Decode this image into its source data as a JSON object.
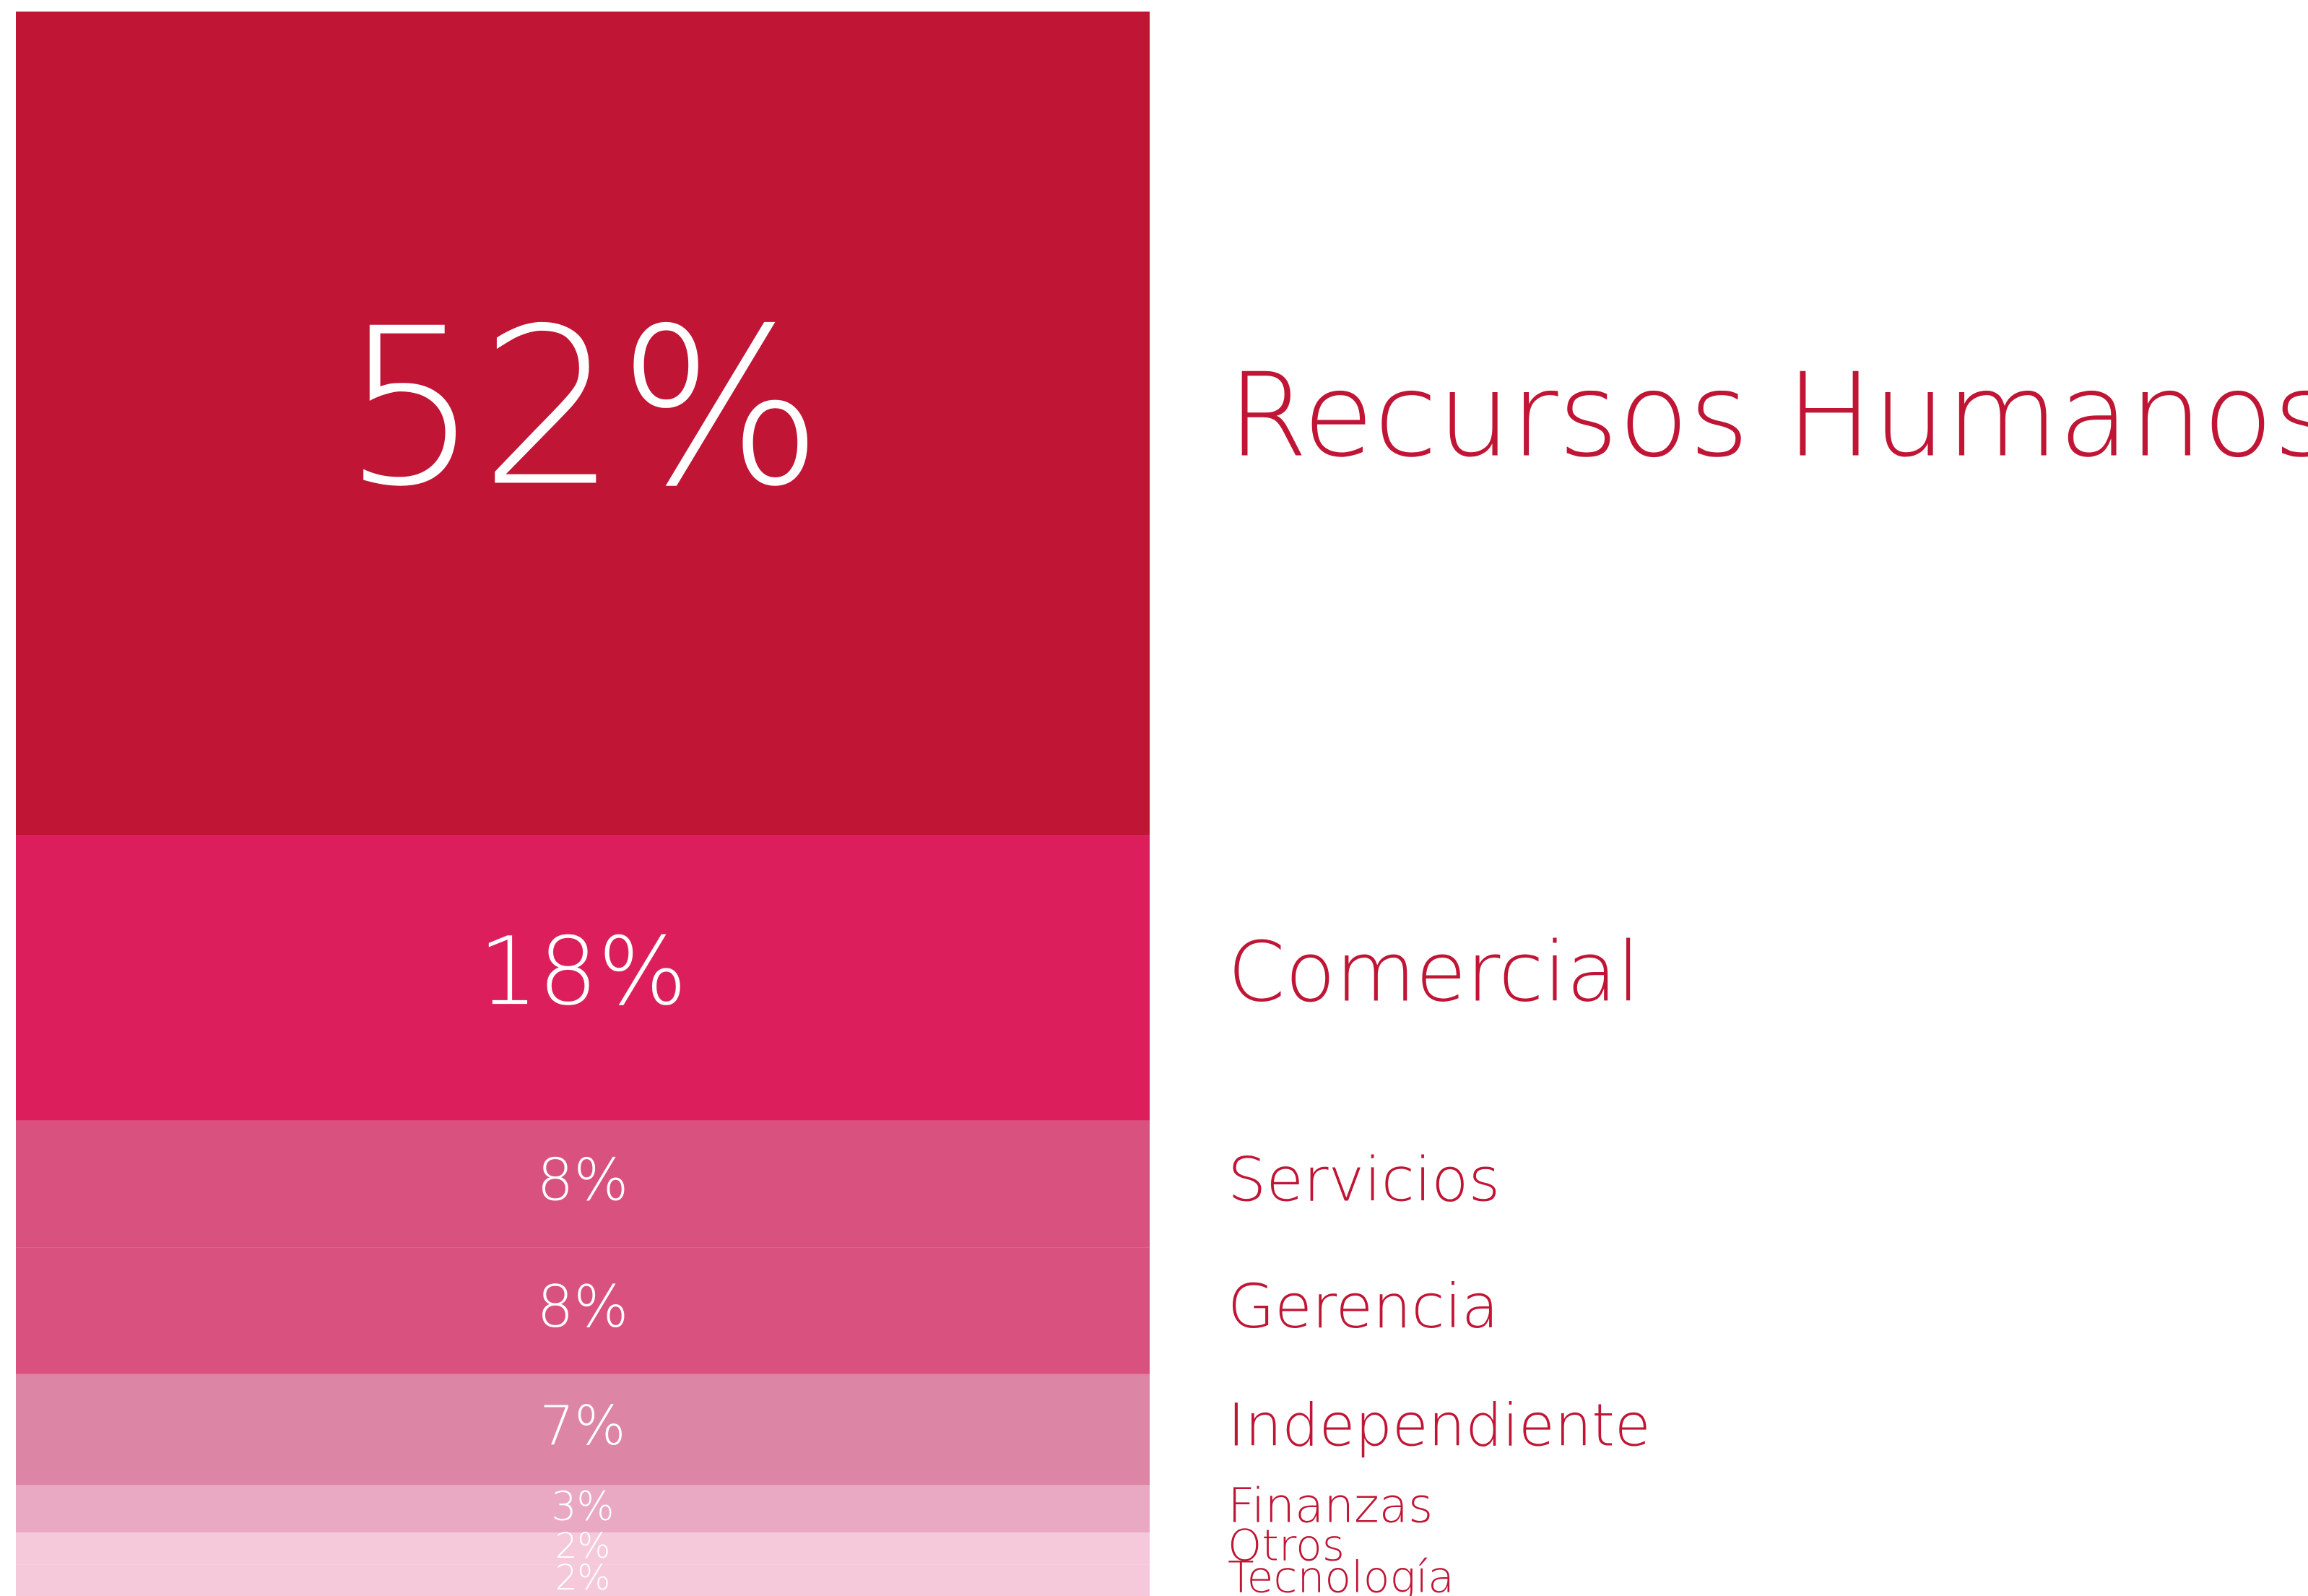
{
  "chart_data": {
    "type": "stacked-column",
    "categories": [
      "Recursos Humanos",
      "Comercial",
      "Servicios",
      "Gerencia",
      "Independiente",
      "Finanzas",
      "Otros",
      "Tecnología"
    ],
    "values": [
      52,
      18,
      8,
      8,
      7,
      3,
      2,
      2
    ],
    "value_labels": [
      "52%",
      "18%",
      "8%",
      "8%",
      "7%",
      "3%",
      "2%",
      "2%"
    ],
    "colors": [
      "#c01535",
      "#dc1f5c",
      "#d9517e",
      "#d9517e",
      "#dc85a5",
      "#eaa9c2",
      "#f5c9da",
      "#f5c9da"
    ],
    "label_color": "#c01535"
  }
}
